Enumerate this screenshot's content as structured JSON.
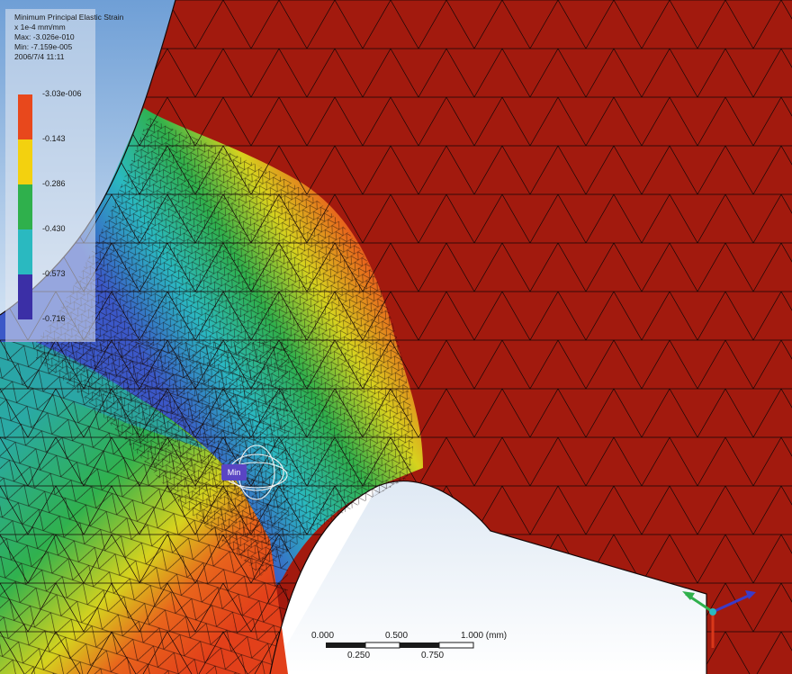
{
  "legend": {
    "title": "Minimum Principal Elastic Strain",
    "unit": "x 1e-4 mm/mm",
    "max": "Max: -3.026e-010",
    "min": "Min: -7.159e-005",
    "timestamp": "2006/7/4 11:11",
    "ticks": [
      "-3.03e-006",
      "-0.143",
      "-0.286",
      "-0.430",
      "-0.573",
      "-0.716"
    ],
    "colors": [
      "#e8481c",
      "#f3d10f",
      "#2fb04c",
      "#2ab9c0",
      "#3b2fa6"
    ]
  },
  "probe": {
    "label": "Min"
  },
  "scale_bar": {
    "top_labels": [
      "0.000",
      "0.500",
      "1.000 (mm)"
    ],
    "bottom_labels": [
      "0.250",
      "0.750"
    ]
  },
  "colors": {
    "body": "#a21a0e",
    "mesh": "#140606",
    "background": "#ffffff"
  }
}
